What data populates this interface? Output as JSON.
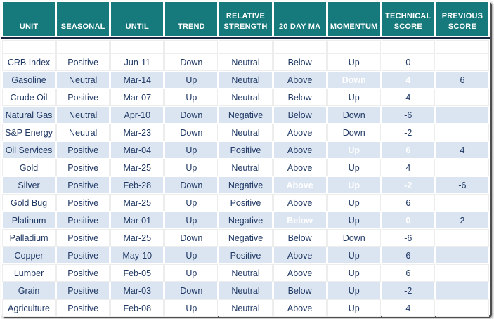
{
  "colors": {
    "header_bg": "#16797c",
    "header_text": "#ffffff",
    "divider": "#1a2742",
    "row_stripe_blue": "#dbe5f1",
    "row_white": "#ffffff",
    "cell_text": "#1f3864",
    "highlight_red": "#f9423c",
    "highlight_green": "#92d050"
  },
  "chart_data": {
    "type": "table",
    "columns": [
      {
        "key": "unit",
        "label": "UNIT"
      },
      {
        "key": "seasonal",
        "label": "SEASONAL"
      },
      {
        "key": "until",
        "label": "UNTIL"
      },
      {
        "key": "trend",
        "label": "TREND"
      },
      {
        "key": "relative_strength",
        "label": "RELATIVE STRENGTH"
      },
      {
        "key": "ma_20day",
        "label": "20 DAY MA"
      },
      {
        "key": "momentum",
        "label": "MOMENTUM"
      },
      {
        "key": "technical_score",
        "label": "TECHNICAL SCORE"
      },
      {
        "key": "previous_score",
        "label": "PREVIOUS SCORE"
      }
    ],
    "rows": [
      {
        "cells": {
          "unit": "CRB Index",
          "seasonal": "Positive",
          "until": "Jun-11",
          "trend": "Down",
          "relative_strength": "Neutral",
          "ma_20day": "Below",
          "momentum": "Up",
          "technical_score": "0",
          "previous_score": ""
        },
        "highlights": {}
      },
      {
        "cells": {
          "unit": "Gasoline",
          "seasonal": "Neutral",
          "until": "Mar-14",
          "trend": "Up",
          "relative_strength": "Neutral",
          "ma_20day": "Above",
          "momentum": "Down",
          "technical_score": "4",
          "previous_score": "6"
        },
        "highlights": {
          "momentum": "red",
          "technical_score": "red"
        }
      },
      {
        "cells": {
          "unit": "Crude Oil",
          "seasonal": "Positive",
          "until": "Mar-07",
          "trend": "Up",
          "relative_strength": "Neutral",
          "ma_20day": "Below",
          "momentum": "Up",
          "technical_score": "4",
          "previous_score": ""
        },
        "highlights": {}
      },
      {
        "cells": {
          "unit": "Natural Gas",
          "seasonal": "Neutral",
          "until": "Apr-10",
          "trend": "Down",
          "relative_strength": "Negative",
          "ma_20day": "Below",
          "momentum": "Down",
          "technical_score": "-6",
          "previous_score": ""
        },
        "highlights": {}
      },
      {
        "cells": {
          "unit": "S&P Energy",
          "seasonal": "Neutral",
          "until": "Mar-23",
          "trend": "Down",
          "relative_strength": "Neutral",
          "ma_20day": "Above",
          "momentum": "Down",
          "technical_score": "-2",
          "previous_score": ""
        },
        "highlights": {}
      },
      {
        "cells": {
          "unit": "Oil Services",
          "seasonal": "Positive",
          "until": "Mar-04",
          "trend": "Up",
          "relative_strength": "Positive",
          "ma_20day": "Above",
          "momentum": "Up",
          "technical_score": "6",
          "previous_score": "4"
        },
        "highlights": {
          "momentum": "green",
          "technical_score": "green"
        }
      },
      {
        "cells": {
          "unit": "Gold",
          "seasonal": "Positive",
          "until": "Mar-25",
          "trend": "Up",
          "relative_strength": "Neutral",
          "ma_20day": "Above",
          "momentum": "Up",
          "technical_score": "4",
          "previous_score": ""
        },
        "highlights": {}
      },
      {
        "cells": {
          "unit": "Silver",
          "seasonal": "Positive",
          "until": "Feb-28",
          "trend": "Down",
          "relative_strength": "Negative",
          "ma_20day": "Above",
          "momentum": "Up",
          "technical_score": "-2",
          "previous_score": "-6"
        },
        "highlights": {
          "ma_20day": "green",
          "momentum": "green",
          "technical_score": "green"
        }
      },
      {
        "cells": {
          "unit": "Gold Bug",
          "seasonal": "Positive",
          "until": "Mar-25",
          "trend": "Up",
          "relative_strength": "Positive",
          "ma_20day": "Above",
          "momentum": "Up",
          "technical_score": "6",
          "previous_score": ""
        },
        "highlights": {}
      },
      {
        "cells": {
          "unit": "Platinum",
          "seasonal": "Positive",
          "until": "Mar-01",
          "trend": "Up",
          "relative_strength": "Negative",
          "ma_20day": "Below",
          "momentum": "Up",
          "technical_score": "0",
          "previous_score": "2"
        },
        "highlights": {
          "ma_20day": "red",
          "technical_score": "red"
        }
      },
      {
        "cells": {
          "unit": "Palladium",
          "seasonal": "Positive",
          "until": "Mar-25",
          "trend": "Down",
          "relative_strength": "Negative",
          "ma_20day": "Below",
          "momentum": "Down",
          "technical_score": "-6",
          "previous_score": ""
        },
        "highlights": {}
      },
      {
        "cells": {
          "unit": "Copper",
          "seasonal": "Positive",
          "until": "May-10",
          "trend": "Up",
          "relative_strength": "Positive",
          "ma_20day": "Above",
          "momentum": "Up",
          "technical_score": "6",
          "previous_score": ""
        },
        "highlights": {}
      },
      {
        "cells": {
          "unit": "Lumber",
          "seasonal": "Positive",
          "until": "Feb-05",
          "trend": "Up",
          "relative_strength": "Neutral",
          "ma_20day": "Above",
          "momentum": "Up",
          "technical_score": "6",
          "previous_score": ""
        },
        "highlights": {}
      },
      {
        "cells": {
          "unit": "Grain",
          "seasonal": "Positive",
          "until": "Mar-03",
          "trend": "Down",
          "relative_strength": "Neutral",
          "ma_20day": "Below",
          "momentum": "Up",
          "technical_score": "-2",
          "previous_score": ""
        },
        "highlights": {}
      },
      {
        "cells": {
          "unit": "Agriculture",
          "seasonal": "Positive",
          "until": "Feb-08",
          "trend": "Up",
          "relative_strength": "Neutral",
          "ma_20day": "Above",
          "momentum": "Up",
          "technical_score": "4",
          "previous_score": ""
        },
        "highlights": {}
      }
    ]
  }
}
